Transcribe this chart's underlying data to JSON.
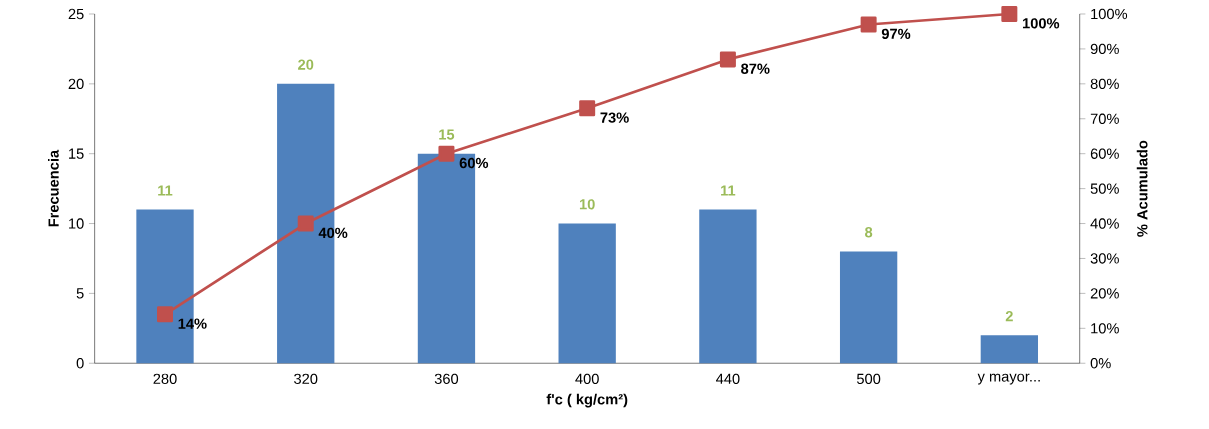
{
  "chart_data": {
    "type": "bar",
    "xlabel": "f'c ( kg/cm²)",
    "ylabel": "Frecuencia",
    "y2label": "% Acumulado",
    "categories": [
      "280",
      "320",
      "360",
      "400",
      "440",
      "500",
      "y mayor..."
    ],
    "series": [
      {
        "color": "#4f81bd",
        "values": [
          11,
          20,
          15,
          10,
          11,
          8,
          2
        ],
        "value_labels": [
          "11",
          "20",
          "15",
          "10",
          "11",
          "8",
          "2"
        ]
      },
      {
        "type": "line",
        "axis": "y2",
        "color": "#c0504d",
        "marker": "square",
        "line_style": "solid",
        "values": [
          14,
          40,
          60,
          73,
          87,
          97,
          100
        ],
        "value_labels": [
          "14%",
          "40%",
          "60%",
          "73%",
          "87%",
          "97%",
          "100%"
        ]
      }
    ],
    "ylim": [
      0,
      25
    ],
    "yticks": [
      0,
      5,
      10,
      15,
      20,
      25
    ],
    "y2lim": [
      0,
      100
    ],
    "y2ticks": [
      {
        "value": 0,
        "label": "0%"
      },
      {
        "value": 10,
        "label": "10%"
      },
      {
        "value": 20,
        "label": "20%"
      },
      {
        "value": 30,
        "label": "30%"
      },
      {
        "value": 40,
        "label": "40%"
      },
      {
        "value": 50,
        "label": "50%"
      },
      {
        "value": 60,
        "label": "60%"
      },
      {
        "value": 70,
        "label": "70%"
      },
      {
        "value": 80,
        "label": "80%"
      },
      {
        "value": 90,
        "label": "90%"
      },
      {
        "value": 100,
        "label": "100%"
      }
    ],
    "grid": false
  }
}
